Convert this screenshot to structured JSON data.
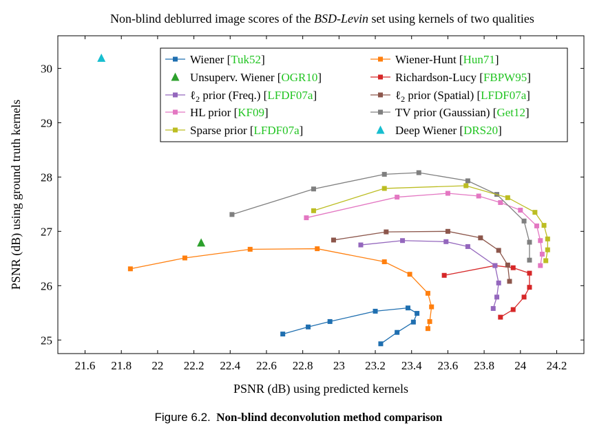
{
  "figure_caption": {
    "label": "Figure 6.2.",
    "title": "Non-blind deconvolution method comparison"
  },
  "colors": {
    "wiener": "#1f6fb0",
    "wiener_hunt": "#ff7f0e",
    "unsuperv_wiener": "#2ca02c",
    "richardson_lucy": "#d62728",
    "l2_freq": "#9467bd",
    "l2_spatial": "#8c564b",
    "hl": "#e377c2",
    "tv": "#7f7f7f",
    "sparse": "#bcbd22",
    "deep_wiener": "#17becf",
    "citation": "#22c422"
  },
  "chart_data": {
    "type": "line",
    "title_parts": {
      "before": "Non-blind deblurred image scores of the ",
      "italic": "BSD-Levin",
      "after": " set using kernels of two qualities"
    },
    "xlabel": "PSNR (dB) using predicted kernels",
    "ylabel": "PSNR (dB) using ground truth kernels",
    "xlim": [
      21.45,
      24.35
    ],
    "ylim": [
      24.75,
      30.6
    ],
    "xticks": [
      21.6,
      21.8,
      22,
      22.2,
      22.4,
      22.6,
      22.8,
      23,
      23.2,
      23.4,
      23.6,
      23.8,
      24,
      24.2
    ],
    "xtick_labels": [
      "21.6",
      "21.8",
      "22",
      "22.2",
      "22.4",
      "22.6",
      "22.8",
      "23",
      "23.2",
      "23.4",
      "23.6",
      "23.8",
      "24",
      "24.2"
    ],
    "yticks": [
      25,
      26,
      27,
      28,
      29,
      30
    ],
    "ytick_labels": [
      "25",
      "26",
      "27",
      "28",
      "29",
      "30"
    ],
    "grid": false,
    "legend_placement": "top, two columns",
    "series": [
      {
        "name": "Wiener",
        "name_pre": "Wiener [",
        "cite": "Tuk52",
        "color": "#1f6fb0",
        "marker": "square",
        "x": [
          22.69,
          22.83,
          22.95,
          23.2,
          23.38,
          23.43,
          23.41,
          23.32,
          23.23
        ],
        "y": [
          25.11,
          25.24,
          25.34,
          25.53,
          25.59,
          25.49,
          25.33,
          25.14,
          24.93
        ]
      },
      {
        "name": "Wiener-Hunt",
        "name_pre": "Wiener-Hunt [",
        "cite": "Hun71",
        "color": "#ff7f0e",
        "marker": "square",
        "x": [
          21.85,
          22.15,
          22.51,
          22.88,
          23.25,
          23.39,
          23.49,
          23.51,
          23.5,
          23.49
        ],
        "y": [
          26.31,
          26.51,
          26.67,
          26.68,
          26.44,
          26.21,
          25.86,
          25.61,
          25.34,
          25.21
        ]
      },
      {
        "name": "Unsuperv. Wiener",
        "name_pre": "Unsuperv. Wiener [",
        "cite": "OGR10",
        "color": "#2ca02c",
        "marker": "triangle",
        "x": [
          22.24
        ],
        "y": [
          26.79
        ]
      },
      {
        "name": "Richardson-Lucy",
        "name_pre": "Richardson-Lucy [",
        "cite": "FBPW95",
        "color": "#d62728",
        "marker": "square",
        "x": [
          23.58,
          23.86,
          23.96,
          24.05,
          24.05,
          24.02,
          23.96,
          23.89
        ],
        "y": [
          26.19,
          26.37,
          26.33,
          26.23,
          25.97,
          25.79,
          25.56,
          25.42
        ]
      },
      {
        "name": "l2 prior (Freq.)",
        "name_pre": "ℓ",
        "name_sub": "2",
        "name_post": " prior (Freq.) [",
        "cite": "LFDF07a",
        "color": "#9467bd",
        "marker": "square",
        "x": [
          23.12,
          23.35,
          23.59,
          23.71,
          23.86,
          23.88,
          23.87,
          23.85
        ],
        "y": [
          26.75,
          26.83,
          26.81,
          26.72,
          26.37,
          26.05,
          25.79,
          25.58
        ]
      },
      {
        "name": "l2 prior (Spatial)",
        "name_pre": "ℓ",
        "name_sub": "2",
        "name_post": " prior (Spatial) [",
        "cite": "LFDF07a",
        "color": "#8c564b",
        "marker": "square",
        "x": [
          22.97,
          23.26,
          23.6,
          23.78,
          23.88,
          23.93,
          23.94
        ],
        "y": [
          26.84,
          26.99,
          27.0,
          26.88,
          26.65,
          26.38,
          26.08
        ]
      },
      {
        "name": "HL prior",
        "name_pre": "HL prior [",
        "cite": "KF09",
        "color": "#e377c2",
        "marker": "square",
        "x": [
          22.82,
          23.32,
          23.6,
          23.77,
          23.89,
          24.0,
          24.09,
          24.11,
          24.12,
          24.11
        ],
        "y": [
          27.25,
          27.63,
          27.7,
          27.65,
          27.53,
          27.39,
          27.1,
          26.83,
          26.58,
          26.37
        ]
      },
      {
        "name": "TV prior (Gaussian)",
        "name_pre": "TV prior (Gaussian) [",
        "cite": "Get12",
        "color": "#7f7f7f",
        "marker": "square",
        "x": [
          22.41,
          22.86,
          23.25,
          23.44,
          23.71,
          23.87,
          24.02,
          24.05,
          24.05
        ],
        "y": [
          27.31,
          27.78,
          28.05,
          28.08,
          27.93,
          27.68,
          27.19,
          26.8,
          26.47
        ]
      },
      {
        "name": "Sparse prior",
        "name_pre": "Sparse prior [",
        "cite": "LFDF07a",
        "color": "#bcbd22",
        "marker": "square",
        "x": [
          22.86,
          23.25,
          23.7,
          23.93,
          24.08,
          24.13,
          24.15,
          24.15,
          24.14
        ],
        "y": [
          27.38,
          27.79,
          27.84,
          27.62,
          27.35,
          27.11,
          26.86,
          26.66,
          26.46
        ]
      },
      {
        "name": "Deep Wiener",
        "name_pre": "Deep Wiener [",
        "cite": "DRS20",
        "color": "#17becf",
        "marker": "triangle",
        "x": [
          21.69
        ],
        "y": [
          30.19
        ]
      }
    ]
  }
}
